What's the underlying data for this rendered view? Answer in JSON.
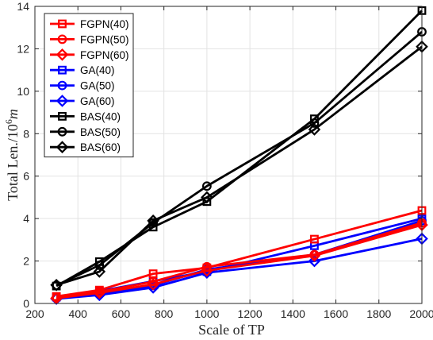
{
  "chart_data": {
    "type": "line",
    "xlabel": "Scale of TP",
    "ylabel_prefix": "Total Len./10",
    "ylabel_exp": "6",
    "ylabel_unit": "m",
    "xlim": [
      200,
      2000
    ],
    "ylim": [
      0,
      14
    ],
    "xticks": [
      200,
      400,
      600,
      800,
      1000,
      1200,
      1400,
      1600,
      1800,
      2000
    ],
    "yticks": [
      0,
      2,
      4,
      6,
      8,
      10,
      12,
      14
    ],
    "grid": true,
    "legend_position": "top-left",
    "x": [
      300,
      500,
      750,
      1000,
      1500,
      2000
    ],
    "series": [
      {
        "name": "FGPN(40)",
        "color": "#ff0000",
        "marker": "square",
        "values": [
          0.33,
          0.63,
          1.4,
          1.68,
          3.03,
          4.38
        ]
      },
      {
        "name": "FGPN(50)",
        "color": "#ff0000",
        "marker": "circle",
        "values": [
          0.28,
          0.55,
          1.03,
          1.73,
          2.3,
          3.8
        ]
      },
      {
        "name": "FGPN(60)",
        "color": "#ff0000",
        "marker": "diamond",
        "values": [
          0.25,
          0.5,
          0.9,
          1.55,
          2.25,
          3.7
        ]
      },
      {
        "name": "GA(40)",
        "color": "#0000ff",
        "marker": "square",
        "values": [
          0.3,
          0.58,
          1.05,
          1.5,
          2.72,
          4.0
        ]
      },
      {
        "name": "GA(50)",
        "color": "#0000ff",
        "marker": "circle",
        "values": [
          0.28,
          0.45,
          0.85,
          1.6,
          2.3,
          3.9
        ]
      },
      {
        "name": "GA(60)",
        "color": "#0000ff",
        "marker": "diamond",
        "values": [
          0.22,
          0.4,
          0.75,
          1.45,
          2.0,
          3.05
        ]
      },
      {
        "name": "BAS(40)",
        "color": "#000000",
        "marker": "square",
        "values": [
          0.82,
          1.97,
          3.6,
          4.8,
          8.7,
          13.8
        ]
      },
      {
        "name": "BAS(50)",
        "color": "#000000",
        "marker": "circle",
        "values": [
          0.85,
          1.8,
          3.8,
          5.53,
          8.5,
          12.8
        ]
      },
      {
        "name": "BAS(60)",
        "color": "#000000",
        "marker": "diamond",
        "values": [
          0.87,
          1.5,
          3.9,
          5.0,
          8.2,
          12.1
        ]
      }
    ]
  }
}
